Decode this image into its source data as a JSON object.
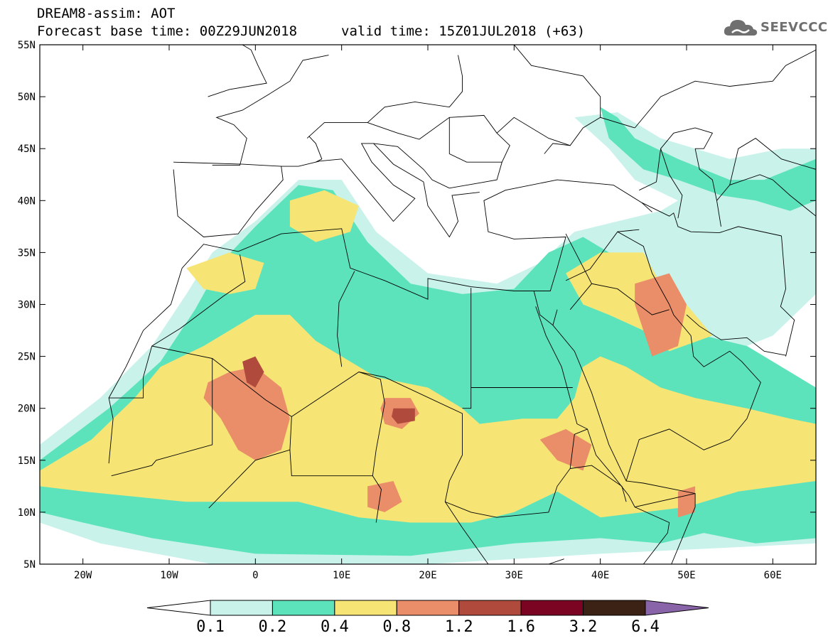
{
  "header": {
    "title": "DREAM8-assim: AOT",
    "base_time": "Forecast base time: 00Z29JUN2018",
    "valid_time": "valid time: 15Z01JUL2018 (+63)"
  },
  "logo": {
    "text": "SEEVCCC",
    "icon": "cloud-icon"
  },
  "map": {
    "lon_range": [
      -25,
      65
    ],
    "lat_range": [
      5,
      55
    ],
    "lat_ticks": [
      {
        "value": 55,
        "label": "55N"
      },
      {
        "value": 50,
        "label": "50N"
      },
      {
        "value": 45,
        "label": "45N"
      },
      {
        "value": 40,
        "label": "40N"
      },
      {
        "value": 35,
        "label": "35N"
      },
      {
        "value": 30,
        "label": "30N"
      },
      {
        "value": 25,
        "label": "25N"
      },
      {
        "value": 20,
        "label": "20N"
      },
      {
        "value": 15,
        "label": "15N"
      },
      {
        "value": 10,
        "label": "10N"
      },
      {
        "value": 5,
        "label": "5N"
      }
    ],
    "lon_ticks": [
      {
        "value": -20,
        "label": "20W"
      },
      {
        "value": -10,
        "label": "10W"
      },
      {
        "value": 0,
        "label": "0"
      },
      {
        "value": 10,
        "label": "10E"
      },
      {
        "value": 20,
        "label": "20E"
      },
      {
        "value": 30,
        "label": "30E"
      },
      {
        "value": 40,
        "label": "40E"
      },
      {
        "value": 50,
        "label": "50E"
      },
      {
        "value": 60,
        "label": "60E"
      }
    ],
    "field_regions": [
      {
        "level": 1,
        "points": [
          [
            -25,
            16.5
          ],
          [
            -18,
            21
          ],
          [
            -12,
            26
          ],
          [
            -8,
            31
          ],
          [
            -5,
            35
          ],
          [
            0,
            38
          ],
          [
            5,
            42
          ],
          [
            10,
            42
          ],
          [
            14,
            37
          ],
          [
            20,
            33
          ],
          [
            28,
            32
          ],
          [
            33,
            34
          ],
          [
            37,
            37
          ],
          [
            42,
            38
          ],
          [
            47,
            39
          ],
          [
            51,
            41
          ],
          [
            56,
            41
          ],
          [
            65,
            42
          ],
          [
            65,
            31
          ],
          [
            60,
            27
          ],
          [
            57,
            26
          ],
          [
            65,
            22
          ],
          [
            65,
            7
          ],
          [
            40,
            6
          ],
          [
            20,
            5
          ],
          [
            -5,
            5
          ],
          [
            -18,
            7
          ],
          [
            -25,
            9
          ]
        ]
      },
      {
        "level": 1,
        "points": [
          [
            37,
            48
          ],
          [
            42,
            48.5
          ],
          [
            47,
            46
          ],
          [
            55,
            44
          ],
          [
            61,
            45
          ],
          [
            65,
            45
          ],
          [
            65,
            38
          ],
          [
            60,
            38
          ],
          [
            54,
            39.5
          ],
          [
            49,
            40
          ],
          [
            44,
            42
          ],
          [
            41,
            45
          ]
        ]
      },
      {
        "level": 2,
        "points": [
          [
            -25,
            15
          ],
          [
            -17,
            20
          ],
          [
            -11,
            24.5
          ],
          [
            -7,
            29.5
          ],
          [
            -4,
            34
          ],
          [
            0,
            37.5
          ],
          [
            5,
            41.5
          ],
          [
            9,
            41
          ],
          [
            13,
            36
          ],
          [
            18,
            32
          ],
          [
            24,
            31
          ],
          [
            30,
            31.5
          ],
          [
            34,
            35
          ],
          [
            38,
            36.5
          ],
          [
            43,
            34
          ],
          [
            48,
            30
          ],
          [
            52,
            27
          ],
          [
            57,
            26
          ],
          [
            65,
            22
          ],
          [
            65,
            7.5
          ],
          [
            58,
            7
          ],
          [
            52,
            8
          ],
          [
            47,
            7
          ],
          [
            40,
            7.5
          ],
          [
            30,
            7
          ],
          [
            18,
            5.8
          ],
          [
            0,
            6
          ],
          [
            -12,
            7.5
          ],
          [
            -20,
            9
          ],
          [
            -25,
            10
          ]
        ]
      },
      {
        "level": 2,
        "points": [
          [
            40,
            49
          ],
          [
            42,
            48
          ],
          [
            44,
            46
          ],
          [
            49,
            44
          ],
          [
            55,
            42
          ],
          [
            59,
            42
          ],
          [
            65,
            44
          ],
          [
            65,
            40
          ],
          [
            62,
            39
          ],
          [
            58,
            40
          ],
          [
            54,
            40.5
          ],
          [
            49,
            42
          ],
          [
            45,
            43
          ],
          [
            41,
            46
          ]
        ]
      },
      {
        "level": 3,
        "points": [
          [
            -25,
            14
          ],
          [
            -19,
            17
          ],
          [
            -14,
            21
          ],
          [
            -11,
            24
          ],
          [
            -6,
            26
          ],
          [
            -3,
            27.5
          ],
          [
            0,
            29
          ],
          [
            4,
            29
          ],
          [
            7,
            26.5
          ],
          [
            10,
            25
          ],
          [
            14,
            23
          ],
          [
            20,
            22
          ],
          [
            24,
            20
          ],
          [
            26,
            18.5
          ],
          [
            31,
            19
          ],
          [
            35,
            19
          ],
          [
            37,
            21
          ],
          [
            38,
            24
          ],
          [
            40,
            25
          ],
          [
            43,
            24
          ],
          [
            47,
            22
          ],
          [
            51,
            21
          ],
          [
            57,
            20
          ],
          [
            62,
            19
          ],
          [
            65,
            18.5
          ],
          [
            65,
            13
          ],
          [
            56,
            12
          ],
          [
            50,
            10.5
          ],
          [
            45,
            10
          ],
          [
            40,
            9.5
          ],
          [
            35,
            12
          ],
          [
            30,
            10
          ],
          [
            25,
            9
          ],
          [
            18,
            9
          ],
          [
            12,
            9.5
          ],
          [
            5,
            11
          ],
          [
            -2,
            11
          ],
          [
            -8,
            11
          ],
          [
            -14,
            11.5
          ],
          [
            -20,
            12
          ],
          [
            -25,
            12.5
          ]
        ]
      },
      {
        "level": 3,
        "points": [
          [
            36,
            33
          ],
          [
            40,
            35
          ],
          [
            45,
            35
          ],
          [
            47,
            32
          ],
          [
            50,
            30
          ],
          [
            53,
            27
          ],
          [
            48,
            25.5
          ],
          [
            45,
            27.5
          ],
          [
            41,
            29
          ],
          [
            38,
            30
          ]
        ]
      },
      {
        "level": 3,
        "points": [
          [
            4,
            40
          ],
          [
            8,
            41
          ],
          [
            12,
            39.5
          ],
          [
            11,
            37
          ],
          [
            7,
            36
          ],
          [
            4,
            37.5
          ]
        ]
      },
      {
        "level": 3,
        "points": [
          [
            -8,
            33.5
          ],
          [
            -3,
            35
          ],
          [
            1,
            34
          ],
          [
            0,
            31.5
          ],
          [
            -3,
            31
          ],
          [
            -6,
            31.5
          ]
        ]
      },
      {
        "level": 4,
        "points": [
          [
            -5.5,
            22.5
          ],
          [
            -3,
            23.5
          ],
          [
            0,
            24
          ],
          [
            3,
            22
          ],
          [
            4,
            19
          ],
          [
            3,
            16
          ],
          [
            0,
            15
          ],
          [
            -2,
            16
          ],
          [
            -4,
            19
          ],
          [
            -6,
            21
          ]
        ]
      },
      {
        "level": 4,
        "points": [
          [
            15,
            21
          ],
          [
            18,
            21
          ],
          [
            19,
            19.5
          ],
          [
            17,
            18
          ],
          [
            15,
            18.5
          ],
          [
            14.5,
            20
          ]
        ]
      },
      {
        "level": 4,
        "points": [
          [
            13,
            12.5
          ],
          [
            16,
            13
          ],
          [
            17,
            11
          ],
          [
            15,
            10
          ],
          [
            13,
            10.5
          ]
        ]
      },
      {
        "level": 4,
        "points": [
          [
            44,
            32
          ],
          [
            48,
            33
          ],
          [
            50,
            30
          ],
          [
            49,
            26
          ],
          [
            46,
            25
          ],
          [
            45,
            27.5
          ],
          [
            44,
            30
          ]
        ]
      },
      {
        "level": 4,
        "points": [
          [
            33,
            17
          ],
          [
            36,
            18
          ],
          [
            39,
            16.5
          ],
          [
            38,
            14
          ],
          [
            35,
            15
          ]
        ]
      },
      {
        "level": 4,
        "points": [
          [
            49,
            12
          ],
          [
            51,
            12.5
          ],
          [
            51,
            10
          ],
          [
            49,
            9.5
          ]
        ]
      },
      {
        "level": 5,
        "points": [
          [
            -1.5,
            24.5
          ],
          [
            0,
            25
          ],
          [
            1,
            23.5
          ],
          [
            0,
            22
          ],
          [
            -1,
            22.5
          ]
        ]
      },
      {
        "level": 5,
        "points": [
          [
            16,
            20
          ],
          [
            18.5,
            20
          ],
          [
            18.5,
            18.8
          ],
          [
            16.5,
            18.5
          ],
          [
            15.8,
            19.2
          ]
        ]
      }
    ]
  },
  "colorbar": {
    "colors": [
      "#ffffff",
      "#c8f2ea",
      "#5ce3bc",
      "#f6e575",
      "#ea8e69",
      "#b04a3c",
      "#7a0422",
      "#3b2214",
      "#8a64a8"
    ],
    "labels": [
      "0.1",
      "0.2",
      "0.4",
      "0.8",
      "1.2",
      "1.6",
      "3.2",
      "6.4"
    ]
  }
}
